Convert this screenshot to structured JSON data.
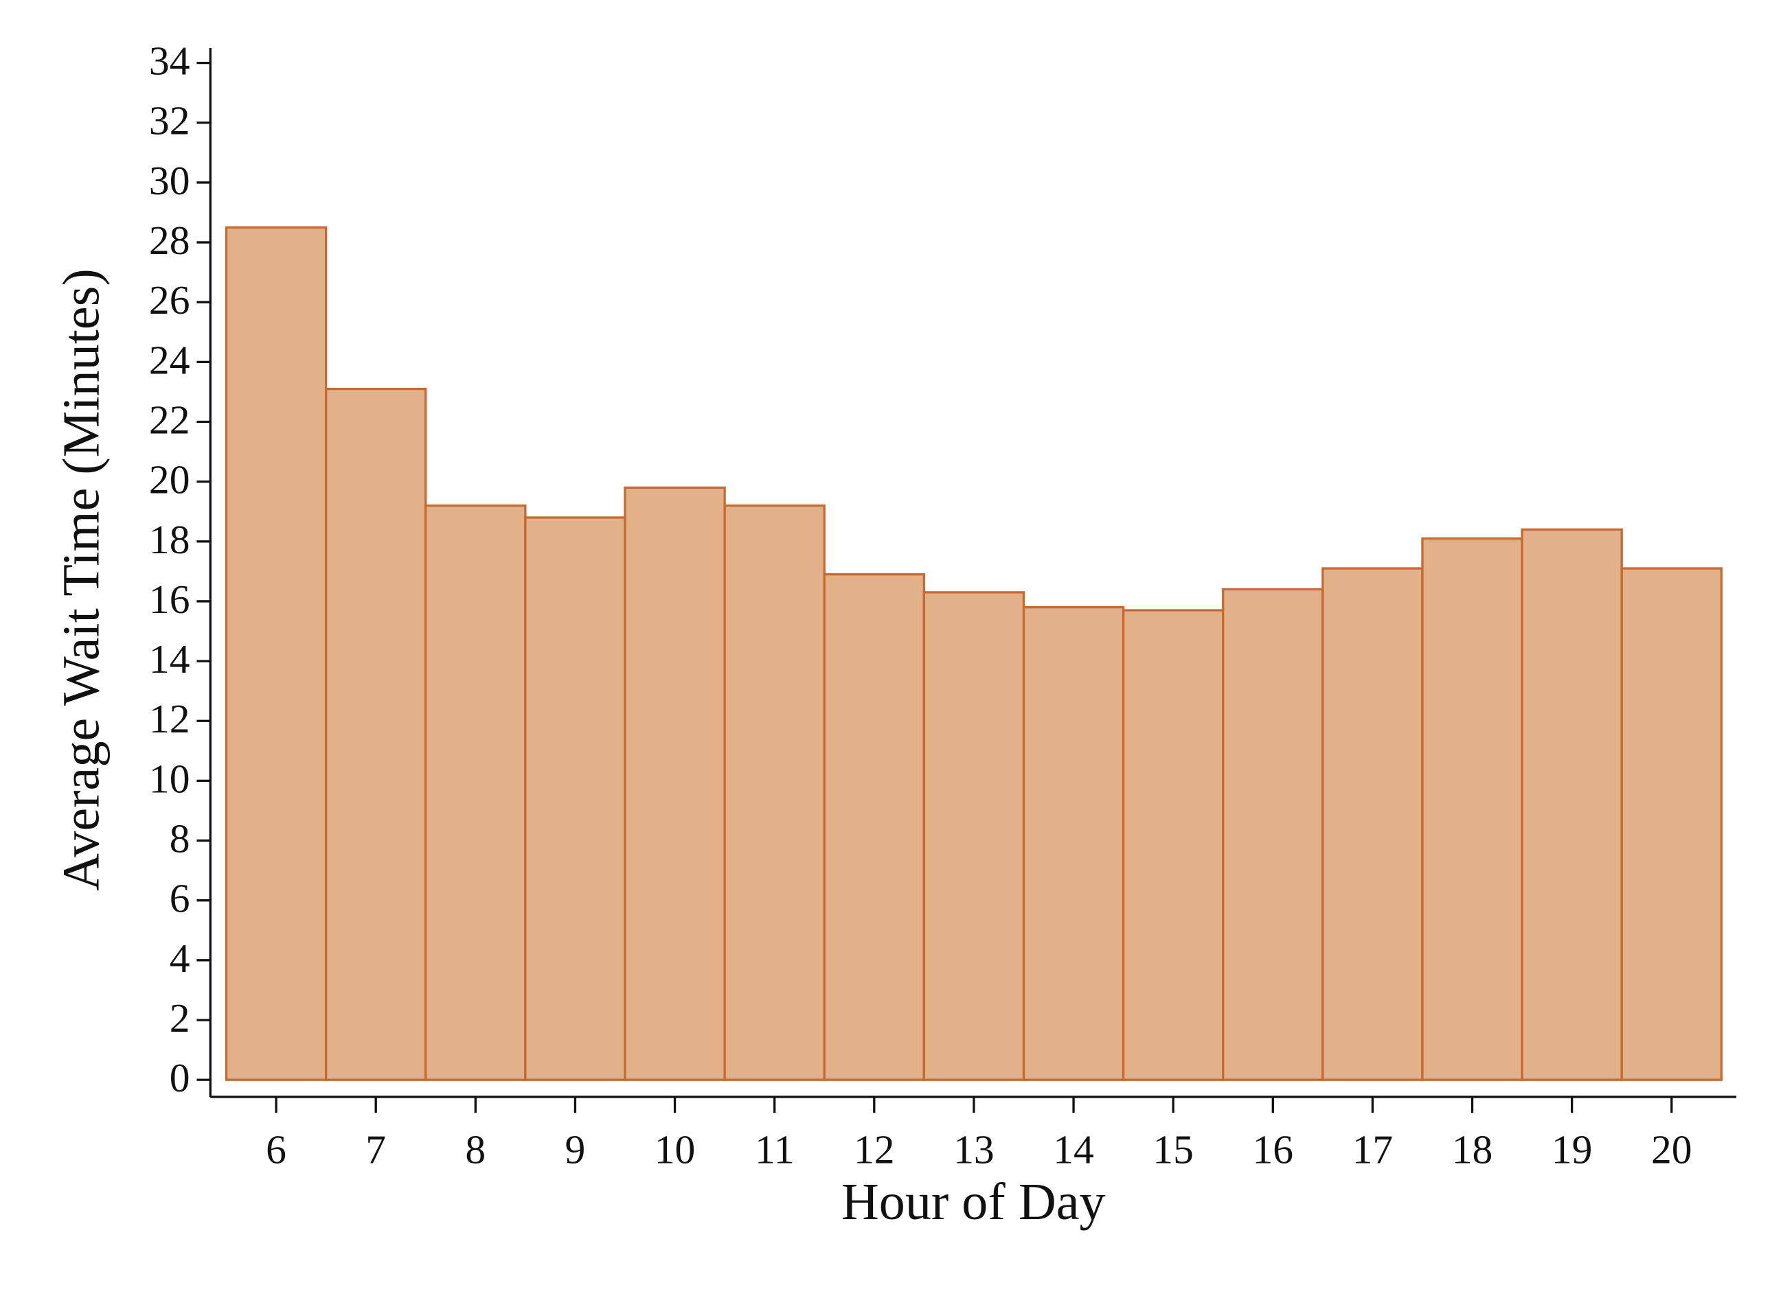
{
  "chart_data": {
    "type": "bar",
    "x_label": "Hour of Day",
    "y_label": "Average Wait Time (Minutes)",
    "x": [
      6,
      7,
      8,
      9,
      10,
      11,
      12,
      13,
      14,
      15,
      16,
      17,
      18,
      19,
      20
    ],
    "values": [
      28.5,
      23.1,
      19.2,
      18.8,
      19.8,
      19.2,
      16.9,
      16.3,
      15.8,
      15.7,
      16.4,
      17.1,
      18.1,
      18.4,
      17.1
    ],
    "color": "#e1b28a",
    "edge_color": "#c8692f",
    "xlim": [
      5.34,
      20.65
    ],
    "xticks": [
      6,
      7,
      8,
      9,
      10,
      11,
      12,
      13,
      14,
      15,
      16,
      17,
      18,
      19,
      20
    ],
    "ylim": [
      -0.57,
      34.5
    ],
    "yticks": [
      0,
      2,
      4,
      6,
      8,
      10,
      12,
      14,
      16,
      18,
      20,
      22,
      24,
      26,
      28,
      30,
      32,
      34
    ],
    "grid": false
  }
}
